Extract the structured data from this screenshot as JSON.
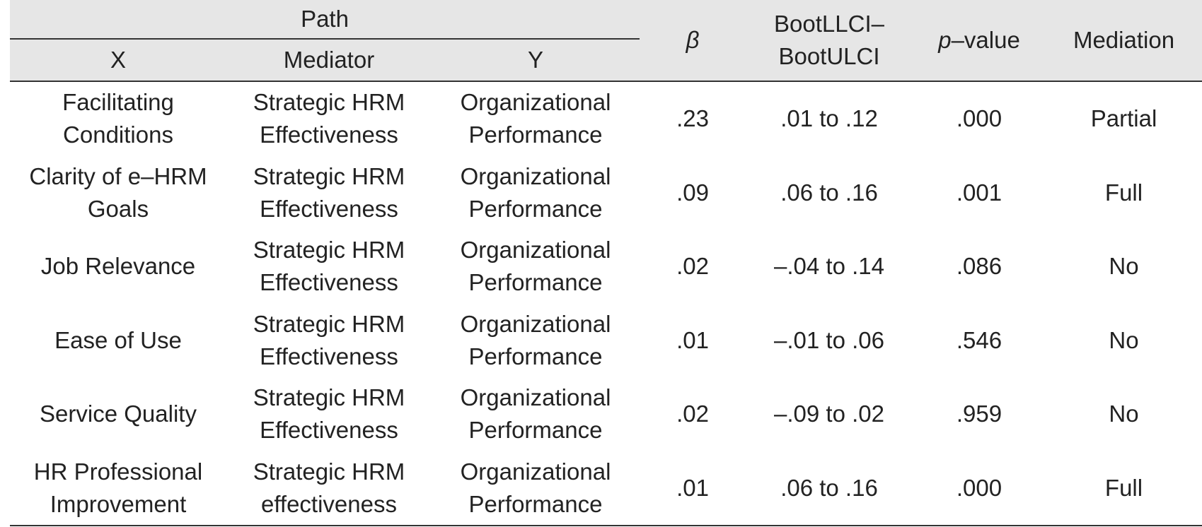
{
  "table": {
    "header": {
      "path": "Path",
      "x": "X",
      "mediator": "Mediator",
      "y": "Y",
      "beta": "β",
      "ci_line1": "BootLLCI–",
      "ci_line2": "BootULCI",
      "p_symbol": "p",
      "p_rest": "–value",
      "mediation": "Mediation"
    },
    "rows": [
      {
        "x": [
          "Facilitating",
          "Conditions"
        ],
        "mediator": [
          "Strategic HRM",
          "Effectiveness"
        ],
        "y": [
          "Organizational",
          "Performance"
        ],
        "beta": ".23",
        "ci": ".01 to .12",
        "p": ".000",
        "mediation": "Partial"
      },
      {
        "x": [
          "Clarity of e–HRM",
          "Goals"
        ],
        "mediator": [
          "Strategic HRM",
          "Effectiveness"
        ],
        "y": [
          "Organizational",
          "Performance"
        ],
        "beta": ".09",
        "ci": ".06 to .16",
        "p": ".001",
        "mediation": "Full"
      },
      {
        "x": [
          "Job Relevance",
          ""
        ],
        "mediator": [
          "Strategic HRM",
          "Effectiveness"
        ],
        "y": [
          "Organizational",
          "Performance"
        ],
        "beta": ".02",
        "ci": "–.04 to .14",
        "p": ".086",
        "mediation": "No"
      },
      {
        "x": [
          "Ease of Use",
          ""
        ],
        "mediator": [
          "Strategic HRM",
          "Effectiveness"
        ],
        "y": [
          "Organizational",
          "Performance"
        ],
        "beta": ".01",
        "ci": "–.01 to .06",
        "p": ".546",
        "mediation": "No"
      },
      {
        "x": [
          "Service Quality",
          ""
        ],
        "mediator": [
          "Strategic HRM",
          "Effectiveness"
        ],
        "y": [
          "Organizational",
          "Performance"
        ],
        "beta": ".02",
        "ci": "–.09 to .02",
        "p": ".959",
        "mediation": "No"
      },
      {
        "x": [
          "HR Professional",
          "Improvement"
        ],
        "mediator": [
          "Strategic HRM",
          "effectiveness"
        ],
        "y": [
          "Organizational",
          "Performance"
        ],
        "beta": ".01",
        "ci": ".06 to .16",
        "p": ".000",
        "mediation": "Full"
      }
    ]
  }
}
